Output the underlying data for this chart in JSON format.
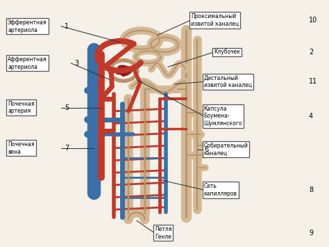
{
  "background_color": "#f5f0e8",
  "red": "#c0392b",
  "blue": "#3a6fa8",
  "beige": "#d4b896",
  "dark_beige": "#b8956a",
  "glom_red": "#8b1a1a",
  "white": "#ffffff",
  "label_edge": "#555555",
  "line_color": "#333333",
  "figsize": [
    4.74,
    3.55
  ],
  "dpi": 100,
  "left_labels": [
    {
      "num": "1",
      "text": "Эфферентная\nартериола",
      "by": 0.895,
      "nx": 0.022
    },
    {
      "num": "3",
      "text": "Афферентная\nартериола",
      "by": 0.745,
      "nx": 0.022
    },
    {
      "num": "5",
      "text": "Почечная\nартерия",
      "by": 0.565,
      "nx": 0.022
    },
    {
      "num": "7",
      "text": "Почечная\nвена",
      "by": 0.4,
      "nx": 0.022
    }
  ],
  "right_labels": [
    {
      "num": "10",
      "text": "Проксимальный\nизвитой каналец",
      "by": 0.92,
      "bx": 0.58
    },
    {
      "num": "2",
      "text": "Клубочек",
      "by": 0.79,
      "bx": 0.65
    },
    {
      "num": "11",
      "text": "Дистальный\nизвитой каналец",
      "by": 0.67,
      "bx": 0.62
    },
    {
      "num": "4",
      "text": "Капсула\nБоумена-\nШумлянского",
      "by": 0.53,
      "bx": 0.62
    },
    {
      "num": "6",
      "text": "Собирательный\nканалец",
      "by": 0.395,
      "bx": 0.62
    },
    {
      "num": "8",
      "text": "Сеть\nкапилляров",
      "by": 0.23,
      "bx": 0.62
    },
    {
      "num": "9",
      "text": "Петля\nГенле",
      "by": 0.055,
      "bx": 0.47
    }
  ]
}
